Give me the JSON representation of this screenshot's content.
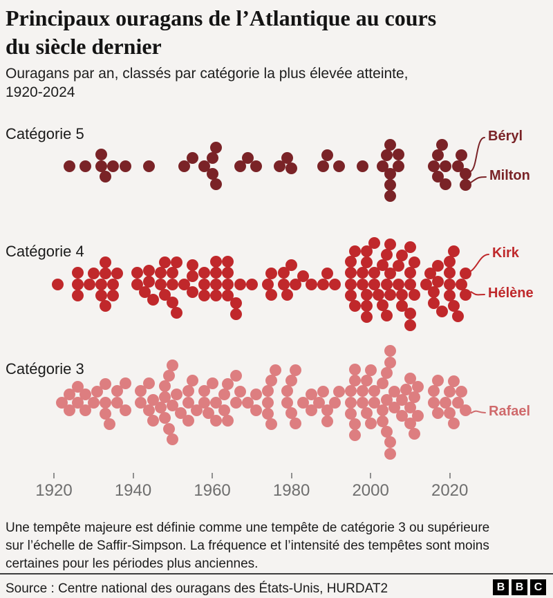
{
  "header": {
    "title_lines": [
      "Principaux ouragans de l’Atlantique au cours",
      "du siècle dernier"
    ],
    "subtitle_lines": [
      "Ouragans par an, classés par catégorie la plus élevée atteinte,",
      "1920-2024"
    ]
  },
  "chart_data": {
    "type": "beeswarm-dot",
    "x_domain": [
      1920,
      2024
    ],
    "x_ticks": [
      1920,
      1940,
      1960,
      1980,
      2000,
      2020
    ],
    "grid": false,
    "legend": "row labels at left, storm name annotations at right",
    "categories": [
      {
        "label": "Catégorie 5",
        "color": "#7a2327",
        "counts_by_year": {
          "1924": 1,
          "1928": 1,
          "1932": 2,
          "1933": 1,
          "1935": 1,
          "1938": 1,
          "1944": 1,
          "1953": 1,
          "1955": 1,
          "1958": 1,
          "1960": 2,
          "1961": 2,
          "1967": 1,
          "1969": 1,
          "1971": 1,
          "1977": 1,
          "1979": 1,
          "1980": 1,
          "1988": 1,
          "1989": 1,
          "1992": 1,
          "1998": 1,
          "2003": 1,
          "2004": 1,
          "2005": 4,
          "2007": 2,
          "2016": 1,
          "2017": 2,
          "2018": 1,
          "2019": 2,
          "2022": 1,
          "2023": 1,
          "2024": 2
        }
      },
      {
        "label": "Catégorie 4",
        "color": "#c0282b",
        "counts_by_year": {
          "1921": 1,
          "1926": 3,
          "1929": 1,
          "1930": 1,
          "1932": 2,
          "1933": 3,
          "1935": 2,
          "1936": 1,
          "1941": 2,
          "1943": 1,
          "1944": 2,
          "1945": 1,
          "1947": 2,
          "1948": 2,
          "1950": 3,
          "1951": 2,
          "1953": 1,
          "1955": 3,
          "1958": 3,
          "1961": 4,
          "1964": 4,
          "1966": 2,
          "1967": 1,
          "1970": 1,
          "1974": 1,
          "1975": 2,
          "1978": 2,
          "1979": 1,
          "1980": 1,
          "1981": 1,
          "1983": 1,
          "1985": 1,
          "1988": 1,
          "1989": 1,
          "1991": 1,
          "1995": 4,
          "1996": 2,
          "1998": 2,
          "1999": 5,
          "2001": 3,
          "2002": 1,
          "2003": 2,
          "2004": 3,
          "2005": 3,
          "2007": 2,
          "2008": 3,
          "2010": 5,
          "2011": 2,
          "2014": 1,
          "2015": 1,
          "2016": 2,
          "2017": 2,
          "2018": 1,
          "2020": 4,
          "2021": 2,
          "2022": 1,
          "2023": 1,
          "2024": 2
        }
      },
      {
        "label": "Catégorie 3",
        "color": "#dd7e80",
        "counts_by_year": {
          "1922": 1,
          "1924": 2,
          "1926": 2,
          "1928": 2,
          "1930": 1,
          "1931": 1,
          "1933": 3,
          "1934": 1,
          "1936": 2,
          "1938": 2,
          "1942": 2,
          "1944": 2,
          "1945": 2,
          "1947": 1,
          "1948": 3,
          "1949": 2,
          "1950": 3,
          "1951": 1,
          "1952": 1,
          "1954": 3,
          "1955": 1,
          "1956": 1,
          "1958": 2,
          "1959": 1,
          "1960": 1,
          "1961": 2,
          "1963": 2,
          "1964": 2,
          "1966": 2,
          "1967": 1,
          "1969": 1,
          "1971": 2,
          "1974": 3,
          "1975": 2,
          "1976": 1,
          "1979": 2,
          "1980": 2,
          "1981": 2,
          "1983": 1,
          "1985": 2,
          "1987": 1,
          "1988": 1,
          "1989": 2,
          "1991": 1,
          "1992": 1,
          "1995": 3,
          "1996": 4,
          "1998": 2,
          "1999": 2,
          "2000": 2,
          "2001": 2,
          "2003": 3,
          "2004": 3,
          "2005": 4,
          "2006": 2,
          "2008": 2,
          "2009": 1,
          "2010": 3,
          "2011": 2,
          "2012": 2,
          "2016": 2,
          "2017": 2,
          "2019": 1,
          "2020": 2,
          "2021": 2,
          "2022": 1,
          "2023": 1,
          "2024": 1
        }
      }
    ],
    "annotations": [
      {
        "name": "Béryl",
        "category": 0,
        "year": 2024,
        "pick": "top",
        "color": "#7a2327"
      },
      {
        "name": "Milton",
        "category": 0,
        "year": 2024,
        "pick": "bottom",
        "color": "#7a2327"
      },
      {
        "name": "Kirk",
        "category": 1,
        "year": 2024,
        "pick": "top",
        "color": "#bf282b"
      },
      {
        "name": "Hélène",
        "category": 1,
        "year": 2024,
        "pick": "bottom",
        "color": "#bf282b"
      },
      {
        "name": "Rafael",
        "category": 2,
        "year": 2024,
        "pick": "top",
        "color": "#cf696b"
      }
    ]
  },
  "footer": {
    "note_lines": [
      "Une tempête majeure est définie comme une tempête de catégorie 3 ou supérieure",
      "sur l’échelle de Saffir-Simpson. La fréquence et l’intensité des tempêtes sont moins",
      "certaines pour les périodes plus anciennes."
    ],
    "source": "Source : Centre national des ouragans des États-Unis, HURDAT2",
    "logo": [
      "B",
      "B",
      "C"
    ]
  }
}
